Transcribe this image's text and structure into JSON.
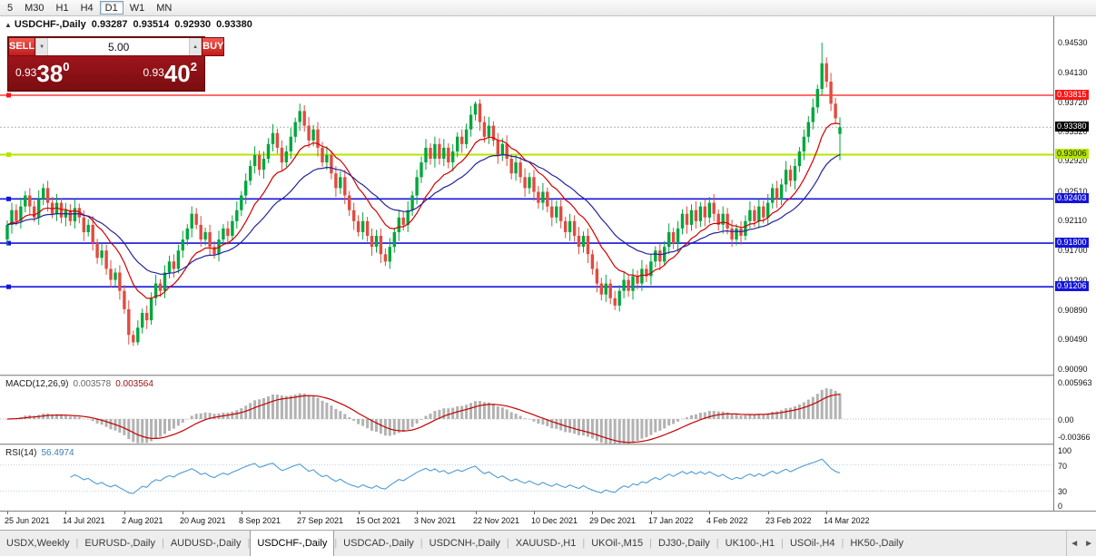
{
  "toolbar": {
    "timeframes": [
      "5",
      "M30",
      "H1",
      "H4",
      "D1",
      "W1",
      "MN"
    ],
    "active_timeframe": "D1"
  },
  "icons": {
    "collapse_arrow": "▲",
    "spinner_up": "▲",
    "spinner_down": "▼",
    "tab_prev": "◄",
    "tab_next": "►"
  },
  "chart": {
    "title": {
      "symbol": "USDCHF-,Daily",
      "open": "0.93287",
      "high": "0.93514",
      "low": "0.92930",
      "close": "0.93380"
    }
  },
  "trade": {
    "sell_label": "SELL",
    "buy_label": "BUY",
    "volume": "5.00",
    "sell": {
      "prefix": "0.93",
      "big": "38",
      "sup": "0"
    },
    "buy": {
      "prefix": "0.93",
      "big": "40",
      "sup": "2"
    }
  },
  "indicators": {
    "macd": {
      "name": "MACD(12,26,9)",
      "value_main": "0.003578",
      "value_signal": "0.003564",
      "axis": [
        {
          "label": "0.005963",
          "v": 0.005963
        },
        {
          "label": "0.00",
          "v": 0
        },
        {
          "label": "-0.00366",
          "v": -0.00366
        }
      ]
    },
    "rsi": {
      "name": "RSI(14)",
      "value": "56.4974",
      "axis": [
        {
          "label": "100",
          "v": 100
        },
        {
          "label": "70",
          "v": 70
        },
        {
          "label": "30",
          "v": 30
        },
        {
          "label": "0",
          "v": 0
        }
      ],
      "levels": [
        70,
        30
      ]
    }
  },
  "colors": {
    "up": "#00a73c",
    "down": "#e14b40",
    "ma_fast": "#d40000",
    "ma_slow": "#24249a",
    "macd_hist": "#b2b2b2",
    "macd_signal": "#c40000",
    "rsi": "#4f9bd5",
    "rsi_level": "#b9cfe8",
    "current_line": "#b0b0b0"
  },
  "chart_data": {
    "type": "candlestick",
    "symbol": "USDCHF",
    "timeframe": "Daily",
    "y_axis": {
      "top": 0.9489,
      "bottom": 0.9001
    },
    "price_ticks": [
      "0.94530",
      "0.94130",
      "0.93720",
      "0.93320",
      "0.92920",
      "0.92510",
      "0.92110",
      "0.91700",
      "0.91290",
      "0.90890",
      "0.90490",
      "0.90090"
    ],
    "current_price": {
      "value": 0.9338,
      "label": "0.93380",
      "bg": "#000000",
      "fg": "#ffffff"
    },
    "hlines": [
      {
        "value": 0.93815,
        "label": "0.93815",
        "color": "#ff1414",
        "text": "#ffffff",
        "width": 1.2
      },
      {
        "value": 0.93006,
        "label": "0.93006",
        "color": "#b4e600",
        "text": "#1a1a00",
        "width": 2
      },
      {
        "value": 0.92403,
        "label": "0.92403",
        "color": "#1414dc",
        "text": "#ffffff",
        "width": 1.6
      },
      {
        "value": 0.918,
        "label": "0.91800",
        "color": "#1414dc",
        "text": "#ffffff",
        "width": 1.6
      },
      {
        "value": 0.91206,
        "label": "0.91206",
        "color": "#1414dc",
        "text": "#ffffff",
        "width": 1.6
      }
    ],
    "date_ticks": [
      {
        "label": "25 Jun 2021",
        "i": 0
      },
      {
        "label": "14 Jul 2021",
        "i": 13
      },
      {
        "label": "2 Aug 2021",
        "i": 26
      },
      {
        "label": "20 Aug 2021",
        "i": 39
      },
      {
        "label": "8 Sep 2021",
        "i": 52
      },
      {
        "label": "27 Sep 2021",
        "i": 65
      },
      {
        "label": "15 Oct 2021",
        "i": 78
      },
      {
        "label": "3 Nov 2021",
        "i": 91
      },
      {
        "label": "22 Nov 2021",
        "i": 104
      },
      {
        "label": "10 Dec 2021",
        "i": 117
      },
      {
        "label": "29 Dec 2021",
        "i": 130
      },
      {
        "label": "17 Jan 2022",
        "i": 143
      },
      {
        "label": "4 Feb 2022",
        "i": 156
      },
      {
        "label": "23 Feb 2022",
        "i": 169
      },
      {
        "label": "14 Mar 2022",
        "i": 182
      }
    ],
    "candles": [
      [
        0.9185,
        0.9211,
        0.9177,
        0.9205
      ],
      [
        0.9205,
        0.9235,
        0.9193,
        0.9225
      ],
      [
        0.9225,
        0.9233,
        0.9204,
        0.921
      ],
      [
        0.921,
        0.9242,
        0.92,
        0.923
      ],
      [
        0.923,
        0.9251,
        0.9222,
        0.9245
      ],
      [
        0.9245,
        0.9255,
        0.9218,
        0.923
      ],
      [
        0.923,
        0.9238,
        0.9209,
        0.9215
      ],
      [
        0.9215,
        0.9252,
        0.9205,
        0.924
      ],
      [
        0.924,
        0.9261,
        0.9232,
        0.9255
      ],
      [
        0.9255,
        0.9265,
        0.9223,
        0.9235
      ],
      [
        0.9235,
        0.9243,
        0.9214,
        0.922
      ],
      [
        0.922,
        0.9247,
        0.921,
        0.9235
      ],
      [
        0.9235,
        0.9241,
        0.9207,
        0.9215
      ],
      [
        0.9215,
        0.9235,
        0.9203,
        0.9225
      ],
      [
        0.9225,
        0.9233,
        0.9204,
        0.921
      ],
      [
        0.921,
        0.924,
        0.92,
        0.9228
      ],
      [
        0.9228,
        0.9234,
        0.9207,
        0.9215
      ],
      [
        0.9215,
        0.9225,
        0.9183,
        0.9195
      ],
      [
        0.9195,
        0.9213,
        0.9189,
        0.9205
      ],
      [
        0.9205,
        0.9217,
        0.917,
        0.918
      ],
      [
        0.918,
        0.9186,
        0.9152,
        0.916
      ],
      [
        0.916,
        0.918,
        0.915,
        0.917
      ],
      [
        0.917,
        0.9178,
        0.9137,
        0.9145
      ],
      [
        0.9145,
        0.9157,
        0.912,
        0.913
      ],
      [
        0.913,
        0.9146,
        0.9122,
        0.914
      ],
      [
        0.914,
        0.915,
        0.9103,
        0.9115
      ],
      [
        0.9115,
        0.9123,
        0.9084,
        0.909
      ],
      [
        0.909,
        0.9102,
        0.9042,
        0.9055
      ],
      [
        0.9055,
        0.9061,
        0.904,
        0.9045
      ],
      [
        0.9045,
        0.9075,
        0.9041,
        0.9065
      ],
      [
        0.9065,
        0.9091,
        0.9057,
        0.9085
      ],
      [
        0.9085,
        0.9095,
        0.9063,
        0.9075
      ],
      [
        0.9075,
        0.9113,
        0.9069,
        0.9105
      ],
      [
        0.9105,
        0.9137,
        0.9095,
        0.9125
      ],
      [
        0.9125,
        0.9131,
        0.9107,
        0.9115
      ],
      [
        0.9115,
        0.915,
        0.9105,
        0.914
      ],
      [
        0.914,
        0.9163,
        0.9132,
        0.9155
      ],
      [
        0.9155,
        0.9165,
        0.9133,
        0.9145
      ],
      [
        0.9145,
        0.9178,
        0.9139,
        0.917
      ],
      [
        0.917,
        0.9197,
        0.916,
        0.9185
      ],
      [
        0.9185,
        0.9206,
        0.9177,
        0.92
      ],
      [
        0.92,
        0.923,
        0.9188,
        0.922
      ],
      [
        0.922,
        0.9228,
        0.9199,
        0.9205
      ],
      [
        0.9205,
        0.9217,
        0.9175,
        0.9185
      ],
      [
        0.9185,
        0.9201,
        0.9177,
        0.9195
      ],
      [
        0.9195,
        0.9205,
        0.9163,
        0.9175
      ],
      [
        0.9175,
        0.9183,
        0.9159,
        0.9165
      ],
      [
        0.9165,
        0.9197,
        0.9155,
        0.9185
      ],
      [
        0.9185,
        0.9206,
        0.9177,
        0.92
      ],
      [
        0.92,
        0.921,
        0.9178,
        0.919
      ],
      [
        0.919,
        0.9218,
        0.9184,
        0.921
      ],
      [
        0.921,
        0.9237,
        0.92,
        0.9225
      ],
      [
        0.9225,
        0.9251,
        0.9217,
        0.9245
      ],
      [
        0.9245,
        0.9275,
        0.9233,
        0.9265
      ],
      [
        0.9265,
        0.9293,
        0.9259,
        0.9285
      ],
      [
        0.9285,
        0.9312,
        0.9275,
        0.93
      ],
      [
        0.93,
        0.9306,
        0.9272,
        0.928
      ],
      [
        0.928,
        0.9305,
        0.9268,
        0.9295
      ],
      [
        0.9295,
        0.9323,
        0.9289,
        0.9315
      ],
      [
        0.9315,
        0.9342,
        0.9305,
        0.933
      ],
      [
        0.933,
        0.9336,
        0.9302,
        0.931
      ],
      [
        0.931,
        0.932,
        0.9278,
        0.929
      ],
      [
        0.929,
        0.9313,
        0.9284,
        0.9305
      ],
      [
        0.9305,
        0.9337,
        0.9295,
        0.9325
      ],
      [
        0.9325,
        0.9351,
        0.9317,
        0.9345
      ],
      [
        0.9345,
        0.937,
        0.9333,
        0.936
      ],
      [
        0.936,
        0.9368,
        0.9332,
        0.934
      ],
      [
        0.934,
        0.9352,
        0.931,
        0.932
      ],
      [
        0.932,
        0.9341,
        0.9312,
        0.9335
      ],
      [
        0.9335,
        0.9345,
        0.9298,
        0.931
      ],
      [
        0.931,
        0.9318,
        0.9284,
        0.929
      ],
      [
        0.929,
        0.9312,
        0.928,
        0.93
      ],
      [
        0.93,
        0.9306,
        0.9267,
        0.9275
      ],
      [
        0.9275,
        0.9285,
        0.9243,
        0.9255
      ],
      [
        0.9255,
        0.9278,
        0.9247,
        0.927
      ],
      [
        0.927,
        0.928,
        0.9233,
        0.9245
      ],
      [
        0.9245,
        0.9251,
        0.9217,
        0.9225
      ],
      [
        0.9225,
        0.9235,
        0.9198,
        0.921
      ],
      [
        0.921,
        0.9218,
        0.9189,
        0.9195
      ],
      [
        0.9195,
        0.9222,
        0.9185,
        0.921
      ],
      [
        0.921,
        0.9216,
        0.9182,
        0.919
      ],
      [
        0.919,
        0.92,
        0.9163,
        0.9175
      ],
      [
        0.9175,
        0.9198,
        0.9167,
        0.919
      ],
      [
        0.919,
        0.92,
        0.9153,
        0.9165
      ],
      [
        0.9165,
        0.9173,
        0.9149,
        0.9155
      ],
      [
        0.9155,
        0.9187,
        0.9145,
        0.9175
      ],
      [
        0.9175,
        0.9201,
        0.9167,
        0.9195
      ],
      [
        0.9195,
        0.9225,
        0.9183,
        0.9215
      ],
      [
        0.9215,
        0.9223,
        0.9197,
        0.9205
      ],
      [
        0.9205,
        0.9237,
        0.9195,
        0.9225
      ],
      [
        0.9225,
        0.9251,
        0.9217,
        0.9245
      ],
      [
        0.9245,
        0.928,
        0.9233,
        0.927
      ],
      [
        0.927,
        0.9298,
        0.9262,
        0.929
      ],
      [
        0.929,
        0.9322,
        0.928,
        0.931
      ],
      [
        0.931,
        0.9316,
        0.9287,
        0.9295
      ],
      [
        0.9295,
        0.9325,
        0.9283,
        0.9315
      ],
      [
        0.9315,
        0.9323,
        0.9287,
        0.9295
      ],
      [
        0.9295,
        0.9322,
        0.9285,
        0.931
      ],
      [
        0.931,
        0.9316,
        0.9282,
        0.929
      ],
      [
        0.929,
        0.9315,
        0.9278,
        0.9305
      ],
      [
        0.9305,
        0.9331,
        0.9297,
        0.9325
      ],
      [
        0.9325,
        0.9335,
        0.9303,
        0.9315
      ],
      [
        0.9315,
        0.9343,
        0.9309,
        0.9335
      ],
      [
        0.9335,
        0.9367,
        0.9325,
        0.9355
      ],
      [
        0.9355,
        0.9373,
        0.9347,
        0.937
      ],
      [
        0.937,
        0.9376,
        0.9333,
        0.9345
      ],
      [
        0.9345,
        0.9353,
        0.9317,
        0.9325
      ],
      [
        0.9325,
        0.9352,
        0.9315,
        0.934
      ],
      [
        0.934,
        0.9346,
        0.9312,
        0.932
      ],
      [
        0.932,
        0.933,
        0.9288,
        0.93
      ],
      [
        0.93,
        0.9323,
        0.9292,
        0.9315
      ],
      [
        0.9315,
        0.9327,
        0.9285,
        0.9295
      ],
      [
        0.9295,
        0.9301,
        0.9267,
        0.9275
      ],
      [
        0.9275,
        0.93,
        0.9265,
        0.929
      ],
      [
        0.929,
        0.9298,
        0.9262,
        0.927
      ],
      [
        0.927,
        0.9282,
        0.9243,
        0.9255
      ],
      [
        0.9255,
        0.9276,
        0.9247,
        0.927
      ],
      [
        0.927,
        0.928,
        0.9238,
        0.925
      ],
      [
        0.925,
        0.9258,
        0.9227,
        0.9235
      ],
      [
        0.9235,
        0.9262,
        0.9225,
        0.925
      ],
      [
        0.925,
        0.9256,
        0.9222,
        0.923
      ],
      [
        0.923,
        0.924,
        0.9203,
        0.9215
      ],
      [
        0.9215,
        0.9238,
        0.9207,
        0.923
      ],
      [
        0.923,
        0.9242,
        0.92,
        0.921
      ],
      [
        0.921,
        0.9216,
        0.9187,
        0.9195
      ],
      [
        0.9195,
        0.922,
        0.9183,
        0.921
      ],
      [
        0.921,
        0.9218,
        0.9182,
        0.919
      ],
      [
        0.919,
        0.9202,
        0.9165,
        0.9175
      ],
      [
        0.9175,
        0.9196,
        0.9167,
        0.919
      ],
      [
        0.919,
        0.92,
        0.9153,
        0.9165
      ],
      [
        0.9165,
        0.9171,
        0.9137,
        0.9145
      ],
      [
        0.9145,
        0.9155,
        0.9113,
        0.9125
      ],
      [
        0.9125,
        0.9133,
        0.9102,
        0.911
      ],
      [
        0.911,
        0.9137,
        0.91,
        0.9125
      ],
      [
        0.9125,
        0.9131,
        0.9097,
        0.9105
      ],
      [
        0.9105,
        0.9115,
        0.9089,
        0.9095
      ],
      [
        0.9095,
        0.9123,
        0.9087,
        0.9115
      ],
      [
        0.9115,
        0.9142,
        0.9105,
        0.913
      ],
      [
        0.913,
        0.9136,
        0.9107,
        0.9115
      ],
      [
        0.9115,
        0.9145,
        0.9103,
        0.9135
      ],
      [
        0.9135,
        0.9143,
        0.9117,
        0.9125
      ],
      [
        0.9125,
        0.9157,
        0.9115,
        0.9145
      ],
      [
        0.9145,
        0.9151,
        0.9127,
        0.9135
      ],
      [
        0.9135,
        0.9165,
        0.9123,
        0.9155
      ],
      [
        0.9155,
        0.9176,
        0.9147,
        0.917
      ],
      [
        0.917,
        0.918,
        0.9143,
        0.9155
      ],
      [
        0.9155,
        0.9183,
        0.9149,
        0.9175
      ],
      [
        0.9175,
        0.9207,
        0.9165,
        0.9195
      ],
      [
        0.9195,
        0.9201,
        0.9172,
        0.918
      ],
      [
        0.918,
        0.921,
        0.9168,
        0.92
      ],
      [
        0.92,
        0.9226,
        0.9192,
        0.922
      ],
      [
        0.922,
        0.923,
        0.9193,
        0.9205
      ],
      [
        0.9205,
        0.9233,
        0.9197,
        0.9225
      ],
      [
        0.9225,
        0.9237,
        0.92,
        0.921
      ],
      [
        0.921,
        0.9236,
        0.9202,
        0.923
      ],
      [
        0.923,
        0.924,
        0.9203,
        0.9215
      ],
      [
        0.9215,
        0.9243,
        0.9207,
        0.9235
      ],
      [
        0.9235,
        0.9247,
        0.921,
        0.922
      ],
      [
        0.922,
        0.9226,
        0.9197,
        0.9205
      ],
      [
        0.9205,
        0.923,
        0.9193,
        0.922
      ],
      [
        0.922,
        0.9228,
        0.9192,
        0.92
      ],
      [
        0.92,
        0.9212,
        0.9175,
        0.9185
      ],
      [
        0.9185,
        0.9206,
        0.9177,
        0.92
      ],
      [
        0.92,
        0.921,
        0.9178,
        0.919
      ],
      [
        0.919,
        0.9218,
        0.9184,
        0.921
      ],
      [
        0.921,
        0.9237,
        0.92,
        0.9225
      ],
      [
        0.9225,
        0.9231,
        0.9202,
        0.921
      ],
      [
        0.921,
        0.924,
        0.92,
        0.923
      ],
      [
        0.923,
        0.9238,
        0.9207,
        0.9215
      ],
      [
        0.9215,
        0.9247,
        0.9205,
        0.9235
      ],
      [
        0.9235,
        0.9261,
        0.9227,
        0.9255
      ],
      [
        0.9255,
        0.9265,
        0.9228,
        0.924
      ],
      [
        0.924,
        0.9268,
        0.9232,
        0.926
      ],
      [
        0.926,
        0.9292,
        0.925,
        0.928
      ],
      [
        0.928,
        0.9286,
        0.9257,
        0.9265
      ],
      [
        0.9265,
        0.9295,
        0.9253,
        0.9285
      ],
      [
        0.9285,
        0.9311,
        0.9277,
        0.9305
      ],
      [
        0.9305,
        0.9335,
        0.9293,
        0.9325
      ],
      [
        0.9325,
        0.9353,
        0.9317,
        0.9345
      ],
      [
        0.9345,
        0.9377,
        0.9335,
        0.9365
      ],
      [
        0.9365,
        0.9396,
        0.9357,
        0.939
      ],
      [
        0.939,
        0.9453,
        0.9382,
        0.9425
      ],
      [
        0.9425,
        0.9433,
        0.9392,
        0.94
      ],
      [
        0.94,
        0.9412,
        0.936,
        0.937
      ],
      [
        0.937,
        0.9378,
        0.9342,
        0.935
      ],
      [
        0.93287,
        0.93514,
        0.9293,
        0.9338
      ]
    ],
    "overlays": [
      {
        "name": "ma-fast",
        "type": "ema",
        "period": 12
      },
      {
        "name": "ma-slow",
        "type": "ema",
        "period": 26
      }
    ]
  },
  "tabs": {
    "items": [
      {
        "label": "USDX,Weekly"
      },
      {
        "label": "EURUSD-,Daily"
      },
      {
        "label": "AUDUSD-,Daily"
      },
      {
        "label": "USDCHF-,Daily"
      },
      {
        "label": "USDCAD-,Daily"
      },
      {
        "label": "USDCNH-,Daily"
      },
      {
        "label": "XAUUSD-,H1"
      },
      {
        "label": "UKOil-,M15"
      },
      {
        "label": "DJ30-,Daily"
      },
      {
        "label": "UK100-,H1"
      },
      {
        "label": "USOil-,H4"
      },
      {
        "label": "HK50-,Daily"
      }
    ],
    "active_index": 3
  }
}
